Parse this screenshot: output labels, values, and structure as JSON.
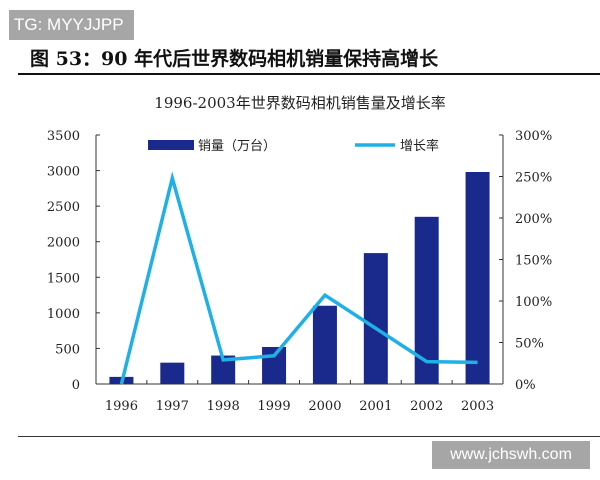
{
  "watermark_top": "TG: MYYJJPP",
  "figure_title": "图 53：90 年代后世界数码相机销量保持高增长",
  "watermark_bottom": "www.jchswh.com",
  "chart_data": {
    "type": "bar+line",
    "title": "1996-2003年世界数码相机销售量及增长率",
    "categories": [
      "1996",
      "1997",
      "1998",
      "1999",
      "2000",
      "2001",
      "2002",
      "2003"
    ],
    "series": [
      {
        "name": "销量（万台）",
        "type": "bar",
        "axis": "left",
        "color": "#1a2a8c",
        "values": [
          100,
          300,
          400,
          520,
          1100,
          1840,
          2350,
          2980
        ]
      },
      {
        "name": "增长率",
        "type": "line",
        "axis": "right",
        "color": "#1fb0e6",
        "values": [
          0,
          248,
          29,
          34,
          107,
          67,
          27,
          26
        ]
      }
    ],
    "left_axis": {
      "range": [
        0,
        3500
      ],
      "ticks": [
        "0",
        "500",
        "1000",
        "1500",
        "2000",
        "2500",
        "3000",
        "3500"
      ]
    },
    "right_axis": {
      "range": [
        0,
        300
      ],
      "ticks": [
        "0%",
        "50%",
        "100%",
        "150%",
        "200%",
        "250%",
        "300%"
      ]
    },
    "legend": "top",
    "grid": false
  }
}
